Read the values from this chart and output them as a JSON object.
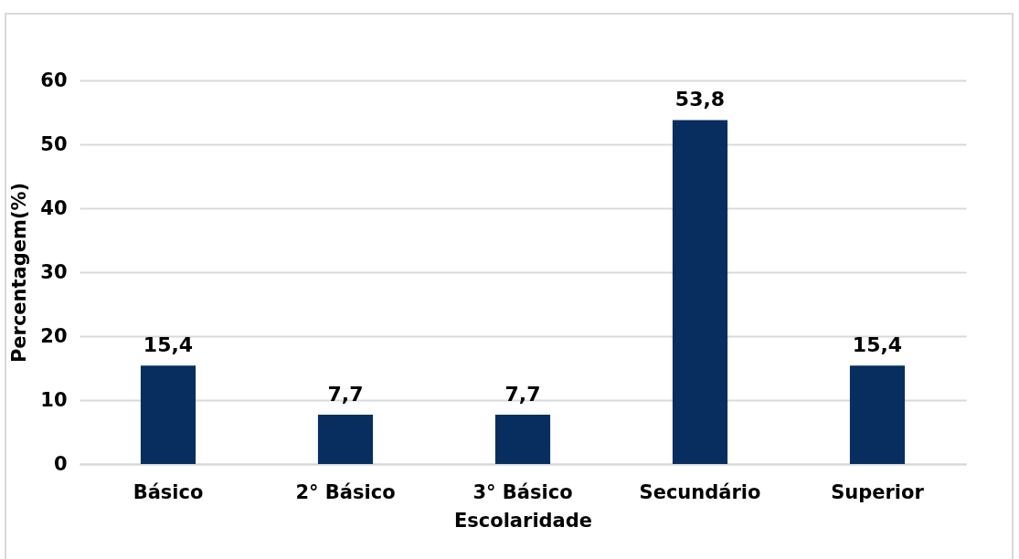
{
  "chart_data": {
    "type": "bar",
    "xlabel": "Escolaridade",
    "ylabel": "Percentagem(%)",
    "categories": [
      "Básico",
      "2° Básico",
      "3° Básico",
      "Secundário",
      "Superior"
    ],
    "values": [
      15.4,
      7.7,
      7.7,
      53.8,
      15.4
    ],
    "value_labels": [
      "15,4",
      "7,7",
      "7,7",
      "53,8",
      "15,4"
    ],
    "color": "#082e5f",
    "ylim": [
      0,
      60
    ],
    "yticks": [
      0,
      10,
      20,
      30,
      40,
      50,
      60
    ],
    "grid": "y"
  }
}
